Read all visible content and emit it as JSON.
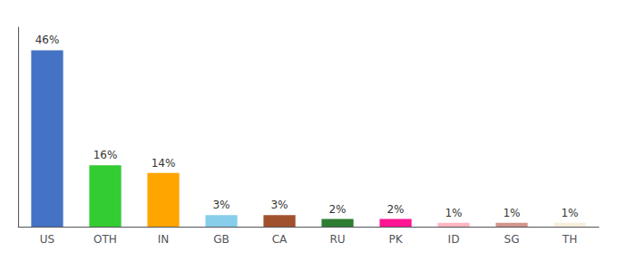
{
  "chart_data": {
    "type": "bar",
    "categories": [
      "US",
      "OTH",
      "IN",
      "GB",
      "CA",
      "RU",
      "PK",
      "ID",
      "SG",
      "TH"
    ],
    "values": [
      46,
      16,
      14,
      3,
      3,
      2,
      2,
      1,
      1,
      1
    ],
    "value_labels": [
      "46%",
      "16%",
      "14%",
      "3%",
      "3%",
      "2%",
      "2%",
      "1%",
      "1%",
      "1%"
    ],
    "colors": [
      "#4472C4",
      "#33CC33",
      "#FFA500",
      "#87CEEB",
      "#A0522D",
      "#2E7D32",
      "#FF1493",
      "#FFB6C1",
      "#D2958A",
      "#F5F0DC"
    ],
    "ylim": [
      0,
      52
    ],
    "data_labels": true,
    "tick_labels": "x",
    "grid": false
  }
}
